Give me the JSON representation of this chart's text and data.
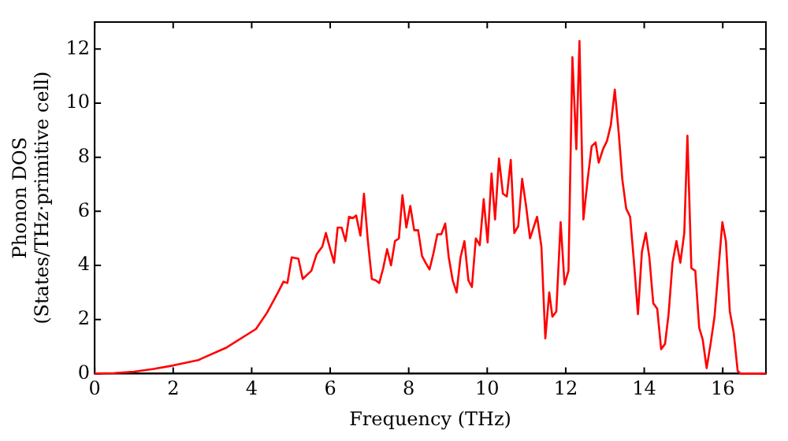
{
  "chart_data": {
    "type": "line",
    "xlabel": "Frequency (THz)",
    "ylabel": "Phonon DOS\n(States/THz·primitive cell)",
    "xlim": [
      0,
      17.1
    ],
    "ylim": [
      0,
      13
    ],
    "xticks": [
      0,
      2,
      4,
      6,
      8,
      10,
      12,
      14,
      16
    ],
    "yticks": [
      0,
      2,
      4,
      6,
      8,
      10,
      12
    ],
    "grid": false,
    "legend": false,
    "marker": "none",
    "line_style": "solid",
    "series": [
      {
        "color": "#ff0000",
        "x": [
          0,
          0.5,
          1,
          1.5,
          2,
          2.64,
          3.34,
          4.11,
          4.39,
          4.67,
          4.81,
          4.91,
          5.02,
          5.19,
          5.3,
          5.52,
          5.65,
          5.8,
          5.89,
          6.0,
          6.1,
          6.19,
          6.29,
          6.39,
          6.48,
          6.58,
          6.66,
          6.77,
          6.86,
          6.96,
          7.06,
          7.16,
          7.25,
          7.35,
          7.45,
          7.55,
          7.65,
          7.75,
          7.84,
          7.94,
          8.04,
          8.14,
          8.24,
          8.34,
          8.43,
          8.53,
          8.63,
          8.73,
          8.83,
          8.93,
          9.02,
          9.12,
          9.22,
          9.32,
          9.42,
          9.52,
          9.61,
          9.71,
          9.81,
          9.91,
          10.01,
          10.11,
          10.2,
          10.3,
          10.4,
          10.5,
          10.6,
          10.69,
          10.79,
          10.89,
          10.99,
          11.09,
          11.27,
          11.38,
          11.48,
          11.58,
          11.66,
          11.76,
          11.87,
          11.97,
          12.07,
          12.17,
          12.27,
          12.35,
          12.45,
          12.56,
          12.66,
          12.76,
          12.84,
          12.95,
          13.05,
          13.15,
          13.25,
          13.35,
          13.44,
          13.54,
          13.64,
          13.74,
          13.84,
          13.94,
          14.04,
          14.13,
          14.23,
          14.33,
          14.43,
          14.53,
          14.62,
          14.72,
          14.82,
          14.92,
          15.02,
          15.1,
          15.2,
          15.3,
          15.4,
          15.49,
          15.59,
          15.69,
          15.79,
          15.99,
          16.08,
          16.18,
          16.28,
          16.38,
          16.45,
          17.1
        ],
        "values": [
          0,
          0.02,
          0.07,
          0.17,
          0.3,
          0.5,
          0.95,
          1.65,
          2.25,
          3.0,
          3.4,
          3.35,
          4.3,
          4.25,
          3.5,
          3.8,
          4.4,
          4.7,
          5.2,
          4.6,
          4.1,
          5.4,
          5.4,
          4.9,
          5.8,
          5.75,
          5.85,
          5.1,
          6.65,
          4.9,
          3.5,
          3.45,
          3.35,
          3.9,
          4.6,
          4.0,
          4.9,
          5.0,
          6.6,
          5.4,
          6.2,
          5.3,
          5.3,
          4.35,
          4.1,
          3.85,
          4.45,
          5.15,
          5.15,
          5.55,
          4.3,
          3.45,
          3.0,
          4.3,
          4.9,
          3.45,
          3.2,
          5.0,
          4.75,
          6.45,
          4.85,
          7.4,
          5.7,
          7.95,
          6.65,
          6.55,
          7.9,
          5.2,
          5.45,
          7.2,
          6.2,
          5.0,
          5.8,
          4.7,
          1.3,
          3.0,
          2.1,
          2.3,
          5.6,
          3.3,
          3.8,
          11.7,
          8.3,
          12.3,
          5.7,
          7.2,
          8.4,
          8.55,
          7.8,
          8.3,
          8.6,
          9.2,
          10.5,
          8.9,
          7.2,
          6.1,
          5.8,
          4.1,
          2.2,
          4.5,
          5.2,
          4.3,
          2.6,
          2.4,
          0.9,
          1.1,
          2.2,
          4.1,
          4.9,
          4.1,
          5.2,
          8.8,
          3.9,
          3.8,
          1.7,
          1.25,
          0.2,
          1.1,
          2.1,
          5.6,
          4.9,
          2.3,
          1.5,
          0.1,
          0,
          0
        ]
      }
    ]
  }
}
